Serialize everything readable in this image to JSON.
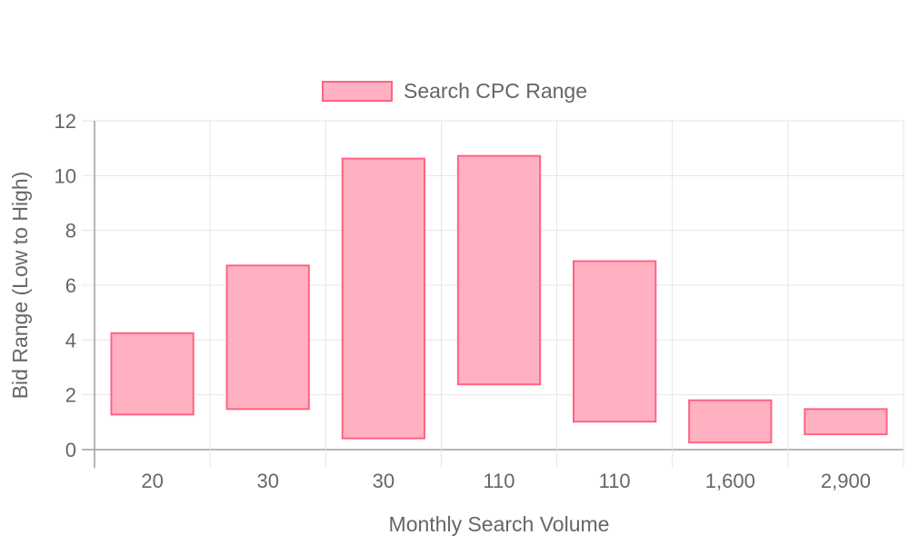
{
  "legend": {
    "label": "Search CPC Range"
  },
  "chart_data": {
    "type": "bar",
    "subtype": "floating-range",
    "categories": [
      "20",
      "30",
      "30",
      "110",
      "110",
      "1,600",
      "2,900"
    ],
    "series": [
      {
        "name": "Search CPC Range",
        "ranges": [
          [
            1.28,
            4.25
          ],
          [
            1.48,
            6.72
          ],
          [
            0.41,
            10.62
          ],
          [
            2.38,
            10.72
          ],
          [
            1.02,
            6.88
          ],
          [
            0.26,
            1.8
          ],
          [
            0.56,
            1.48
          ]
        ]
      }
    ],
    "xlabel": "Monthly Search Volume",
    "ylabel": "Bid Range (Low to High)",
    "ylim": [
      0,
      12
    ],
    "yticks": [
      "0",
      "2",
      "4",
      "6",
      "8",
      "10",
      "12"
    ],
    "grid": true,
    "legend_position": "top",
    "colors": {
      "fill": "#ffb1c1",
      "stroke": "#ff6384",
      "grid": "#e5e5e5",
      "axis": "#9e9e9e"
    }
  }
}
